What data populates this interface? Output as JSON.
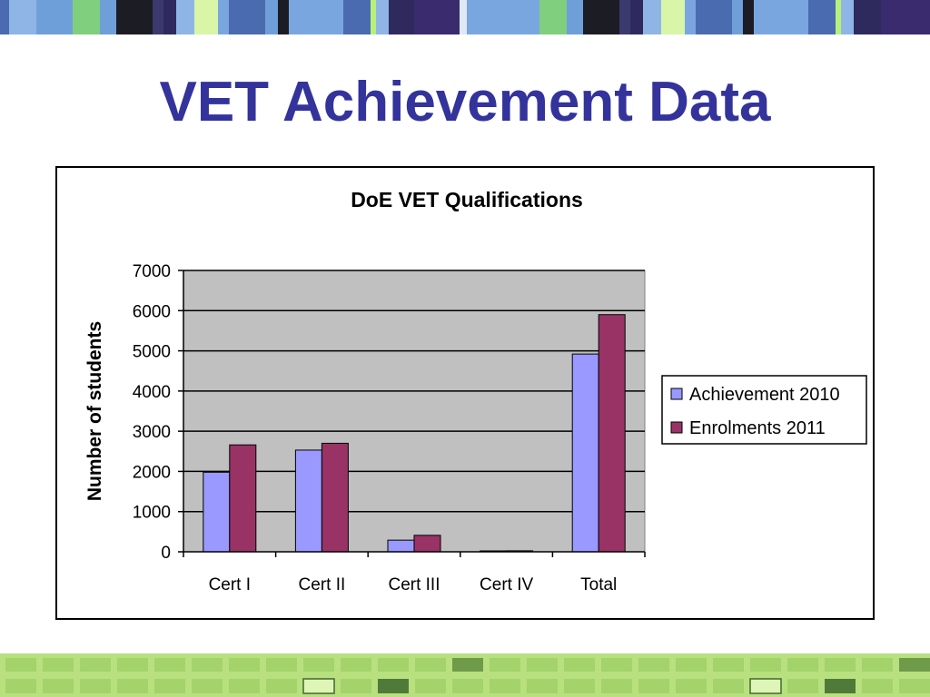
{
  "slide": {
    "title": "VET Achievement Data"
  },
  "colors": {
    "title": "#33339b",
    "plot_background": "#c0c0c0",
    "series_1": "#9999ff",
    "series_2": "#993366"
  },
  "chart_data": {
    "type": "bar",
    "title": "DoE VET Qualifications",
    "xlabel": "",
    "ylabel": "Number of students",
    "categories": [
      "Cert I",
      "Cert II",
      "Cert III",
      "Cert IV",
      "Total"
    ],
    "series": [
      {
        "name": "Achievement 2010",
        "values": [
          1980,
          2530,
          290,
          20,
          4920
        ]
      },
      {
        "name": "Enrolments 2011",
        "values": [
          2660,
          2700,
          410,
          25,
          5900
        ]
      }
    ],
    "ylim": [
      0,
      7000
    ],
    "yticks": [
      "0",
      "1000",
      "2000",
      "3000",
      "4000",
      "5000",
      "6000",
      "7000"
    ],
    "grid": true,
    "legend_position": "right"
  }
}
